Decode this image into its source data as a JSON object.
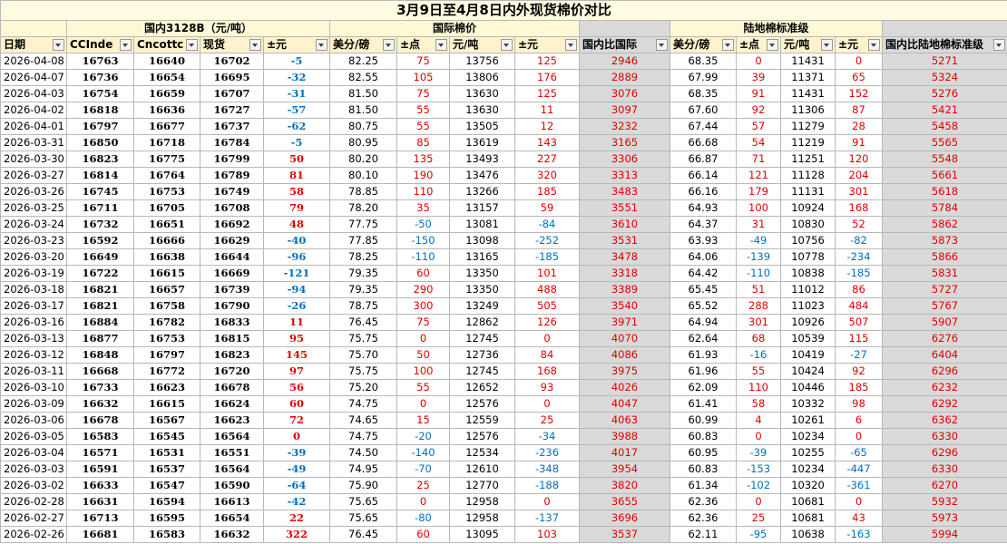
{
  "title": "3月9日至4月8日内外现货棉价对比",
  "groups": [
    "国内3128B（元/吨）",
    "国际棉价",
    "陆地棉标准级"
  ],
  "columns": [
    "日期",
    "CCInde",
    "Cncottc",
    "现货",
    "±元",
    "美分/磅",
    "±点",
    "元/吨",
    "±元",
    "国内比国际",
    "美分/磅",
    "±点",
    "元/吨",
    "±元",
    "国内比陆地棉标准级"
  ],
  "rows": [
    [
      "2026-04-08",
      "16763",
      "16640",
      "16702",
      "-5",
      "82.25",
      "75",
      "13756",
      "125",
      "2946",
      "68.35",
      "0",
      "11431",
      "0",
      "5271"
    ],
    [
      "2026-04-07",
      "16736",
      "16654",
      "16695",
      "-32",
      "82.55",
      "105",
      "13806",
      "176",
      "2889",
      "67.99",
      "39",
      "11371",
      "65",
      "5324"
    ],
    [
      "2026-04-03",
      "16754",
      "16659",
      "16707",
      "-31",
      "81.50",
      "75",
      "13630",
      "125",
      "3076",
      "68.35",
      "91",
      "11431",
      "152",
      "5276"
    ],
    [
      "2026-04-02",
      "16818",
      "16636",
      "16727",
      "-57",
      "81.50",
      "55",
      "13630",
      "11",
      "3097",
      "67.60",
      "92",
      "11306",
      "87",
      "5421"
    ],
    [
      "2026-04-01",
      "16797",
      "16677",
      "16737",
      "-62",
      "80.75",
      "55",
      "13505",
      "12",
      "3232",
      "67.44",
      "57",
      "11279",
      "28",
      "5458"
    ],
    [
      "2026-03-31",
      "16850",
      "16718",
      "16784",
      "-5",
      "80.95",
      "85",
      "13619",
      "143",
      "3165",
      "66.68",
      "54",
      "11219",
      "91",
      "5565"
    ],
    [
      "2026-03-30",
      "16823",
      "16775",
      "16799",
      "50",
      "80.20",
      "135",
      "13493",
      "227",
      "3306",
      "66.87",
      "71",
      "11251",
      "120",
      "5548"
    ],
    [
      "2026-03-27",
      "16814",
      "16764",
      "16789",
      "81",
      "80.10",
      "190",
      "13476",
      "320",
      "3313",
      "66.14",
      "121",
      "11128",
      "204",
      "5661"
    ],
    [
      "2026-03-26",
      "16745",
      "16753",
      "16749",
      "58",
      "78.85",
      "110",
      "13266",
      "185",
      "3483",
      "66.16",
      "179",
      "11131",
      "301",
      "5618"
    ],
    [
      "2026-03-25",
      "16711",
      "16705",
      "16708",
      "79",
      "78.20",
      "35",
      "13157",
      "59",
      "3551",
      "64.93",
      "100",
      "10924",
      "168",
      "5784"
    ],
    [
      "2026-03-24",
      "16732",
      "16651",
      "16692",
      "48",
      "77.75",
      "-50",
      "13081",
      "-84",
      "3610",
      "64.37",
      "31",
      "10830",
      "52",
      "5862"
    ],
    [
      "2026-03-23",
      "16592",
      "16666",
      "16629",
      "-40",
      "77.85",
      "-150",
      "13098",
      "-252",
      "3531",
      "63.93",
      "-49",
      "10756",
      "-82",
      "5873"
    ],
    [
      "2026-03-20",
      "16649",
      "16638",
      "16644",
      "-96",
      "78.25",
      "-110",
      "13165",
      "-185",
      "3478",
      "64.06",
      "-139",
      "10778",
      "-234",
      "5866"
    ],
    [
      "2026-03-19",
      "16722",
      "16615",
      "16669",
      "-121",
      "79.35",
      "60",
      "13350",
      "101",
      "3318",
      "64.42",
      "-110",
      "10838",
      "-185",
      "5831"
    ],
    [
      "2026-03-18",
      "16821",
      "16657",
      "16739",
      "-94",
      "79.35",
      "290",
      "13350",
      "488",
      "3389",
      "65.45",
      "51",
      "11012",
      "86",
      "5727"
    ],
    [
      "2026-03-17",
      "16821",
      "16758",
      "16790",
      "-26",
      "78.75",
      "300",
      "13249",
      "505",
      "3540",
      "65.52",
      "288",
      "11023",
      "484",
      "5767"
    ],
    [
      "2026-03-16",
      "16884",
      "16782",
      "16833",
      "11",
      "76.45",
      "75",
      "12862",
      "126",
      "3971",
      "64.94",
      "301",
      "10926",
      "507",
      "5907"
    ],
    [
      "2026-03-13",
      "16877",
      "16753",
      "16815",
      "95",
      "75.75",
      "0",
      "12745",
      "0",
      "4070",
      "62.64",
      "68",
      "10539",
      "115",
      "6276"
    ],
    [
      "2026-03-12",
      "16848",
      "16797",
      "16823",
      "145",
      "75.70",
      "50",
      "12736",
      "84",
      "4086",
      "61.93",
      "-16",
      "10419",
      "-27",
      "6404"
    ],
    [
      "2026-03-11",
      "16668",
      "16772",
      "16720",
      "97",
      "75.75",
      "100",
      "12745",
      "168",
      "3975",
      "61.96",
      "55",
      "10424",
      "92",
      "6296"
    ],
    [
      "2026-03-10",
      "16733",
      "16623",
      "16678",
      "56",
      "75.20",
      "55",
      "12652",
      "93",
      "4026",
      "62.09",
      "110",
      "10446",
      "185",
      "6232"
    ],
    [
      "2026-03-09",
      "16632",
      "16615",
      "16624",
      "60",
      "74.75",
      "0",
      "12576",
      "0",
      "4047",
      "61.41",
      "58",
      "10332",
      "98",
      "6292"
    ],
    [
      "2026-03-06",
      "16678",
      "16567",
      "16623",
      "72",
      "74.65",
      "15",
      "12559",
      "25",
      "4063",
      "60.99",
      "4",
      "10261",
      "6",
      "6362"
    ],
    [
      "2026-03-05",
      "16583",
      "16545",
      "16564",
      "0",
      "74.75",
      "-20",
      "12576",
      "-34",
      "3988",
      "60.83",
      "0",
      "10234",
      "0",
      "6330"
    ],
    [
      "2026-03-04",
      "16571",
      "16531",
      "16551",
      "-39",
      "74.50",
      "-140",
      "12534",
      "-236",
      "4017",
      "60.95",
      "-39",
      "10255",
      "-65",
      "6296"
    ],
    [
      "2026-03-03",
      "16591",
      "16537",
      "16564",
      "-49",
      "74.95",
      "-70",
      "12610",
      "-348",
      "3954",
      "60.83",
      "-153",
      "10234",
      "-447",
      "6330"
    ],
    [
      "2026-03-02",
      "16633",
      "16547",
      "16590",
      "-64",
      "75.90",
      "25",
      "12770",
      "-188",
      "3820",
      "61.34",
      "-102",
      "10320",
      "-361",
      "6270"
    ],
    [
      "2026-02-28",
      "16631",
      "16594",
      "16613",
      "-42",
      "75.65",
      "0",
      "12958",
      "0",
      "3655",
      "62.36",
      "0",
      "10681",
      "0",
      "5932"
    ],
    [
      "2026-02-27",
      "16713",
      "16595",
      "16654",
      "22",
      "75.65",
      "-80",
      "12958",
      "-137",
      "3696",
      "62.36",
      "25",
      "10681",
      "43",
      "5973"
    ],
    [
      "2026-02-26",
      "16681",
      "16583",
      "16632",
      "322",
      "76.45",
      "60",
      "13095",
      "103",
      "3537",
      "62.11",
      "-95",
      "10638",
      "-163",
      "5994"
    ]
  ]
}
